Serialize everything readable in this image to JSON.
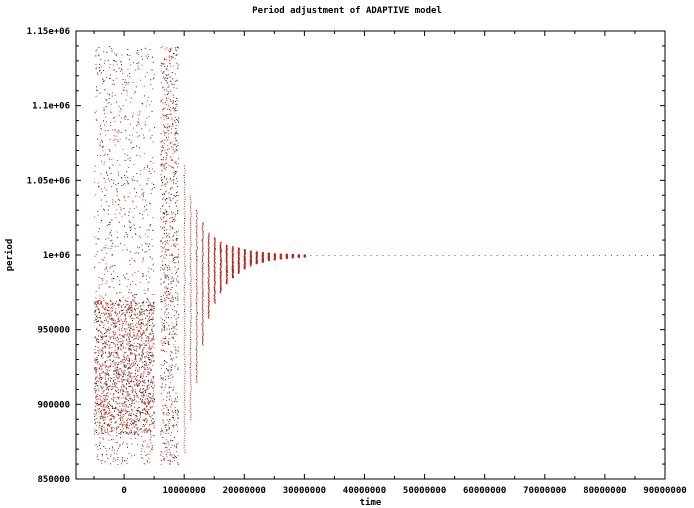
{
  "chart_data": {
    "type": "scatter",
    "title": "Period adjustment of ADAPTIVE model",
    "xlabel": "time",
    "ylabel": "period",
    "xlim": [
      -8000000,
      90000000
    ],
    "ylim": [
      850000,
      1150000
    ],
    "xticks": [
      0,
      10000000,
      20000000,
      30000000,
      40000000,
      50000000,
      60000000,
      70000000,
      80000000,
      90000000
    ],
    "xtick_labels": [
      "0",
      "10000000",
      "20000000",
      "30000000",
      "40000000",
      "50000000",
      "60000000",
      "70000000",
      "80000000",
      "90000000"
    ],
    "yticks": [
      850000,
      900000,
      950000,
      1000000,
      1050000,
      1100000,
      1150000
    ],
    "ytick_labels": [
      "850000",
      "900000",
      "950000",
      "1e+06",
      "1.05e+06",
      "1.1e+06",
      "1.15e+06"
    ],
    "grid": false,
    "legend": "none",
    "point_colors": [
      "#d32f1f",
      "#1a1a1a"
    ],
    "description_of_shape": "",
    "series": [
      {
        "color": "#d32f1f",
        "clusters": [
          {
            "x": [
              -5000000,
              5000000
            ],
            "y_min": 860000,
            "y_max": 1140000,
            "density": "very high"
          },
          {
            "x": [
              6000000,
              9000000
            ],
            "y_min": 860000,
            "y_max": 1140000,
            "density": "high"
          },
          {
            "x": 10000000,
            "y_min": 868000,
            "y_max": 1060000
          },
          {
            "x": 11000000,
            "y_min": 890000,
            "y_max": 1040000
          },
          {
            "x": 12000000,
            "y_min": 915000,
            "y_max": 1030000
          },
          {
            "x": 13000000,
            "y_min": 940000,
            "y_max": 1022000
          },
          {
            "x": 14000000,
            "y_min": 958000,
            "y_max": 1015000
          },
          {
            "x": 15000000,
            "y_min": 968000,
            "y_max": 1012000
          },
          {
            "x": 16000000,
            "y_min": 975000,
            "y_max": 1009000
          },
          {
            "x": 17000000,
            "y_min": 981000,
            "y_max": 1007000
          },
          {
            "x": 18000000,
            "y_min": 985000,
            "y_max": 1006000
          },
          {
            "x": 19000000,
            "y_min": 988000,
            "y_max": 1005000
          },
          {
            "x": 20000000,
            "y_min": 991000,
            "y_max": 1004000
          },
          {
            "x": 21000000,
            "y_min": 993000,
            "y_max": 1003000
          },
          {
            "x": 22000000,
            "y_min": 994500,
            "y_max": 1002500
          },
          {
            "x": 23000000,
            "y_min": 995500,
            "y_max": 1002000
          },
          {
            "x": 24000000,
            "y_min": 996500,
            "y_max": 1001500
          },
          {
            "x": 25000000,
            "y_min": 997000,
            "y_max": 1001200
          },
          {
            "x": 26000000,
            "y_min": 997600,
            "y_max": 1001000
          },
          {
            "x": 27000000,
            "y_min": 998000,
            "y_max": 1000800
          },
          {
            "x": 28000000,
            "y_min": 998500,
            "y_max": 1000600
          },
          {
            "x": 29000000,
            "y_min": 998800,
            "y_max": 1000500
          },
          {
            "x": 30000000,
            "y_min": 999100,
            "y_max": 1000400
          },
          {
            "x": [
              31000000,
              90000000
            ],
            "y": 1000000,
            "note": "points converge to 1e+06"
          }
        ]
      }
    ]
  }
}
